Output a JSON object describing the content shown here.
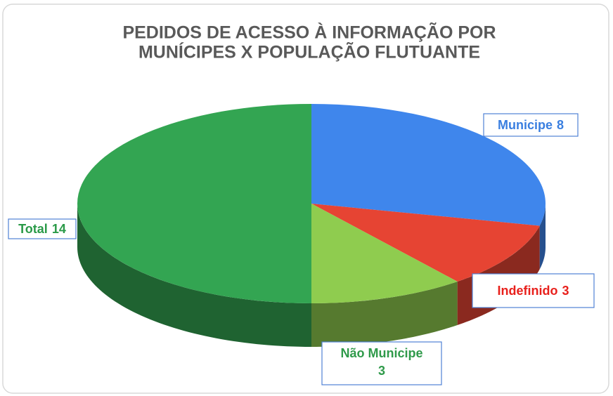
{
  "chart_data": {
    "type": "pie3d",
    "title": [
      "PEDIDOS DE ACESSO  À INFORMAÇÃO POR",
      "MUNÍCIPES X POPULAÇÃO FLUTUANTE"
    ],
    "categories": [
      "Municipe",
      "Indefinido",
      "Não Municipe",
      "Total"
    ],
    "values": [
      8,
      3,
      3,
      14
    ],
    "colors": [
      "#3f86ec",
      "#e64433",
      "#8fcc4f",
      "#33a552"
    ],
    "label_colors": [
      "#3a7fe0",
      "#e8201c",
      "#2f9a4a",
      "#2a9a48"
    ]
  }
}
